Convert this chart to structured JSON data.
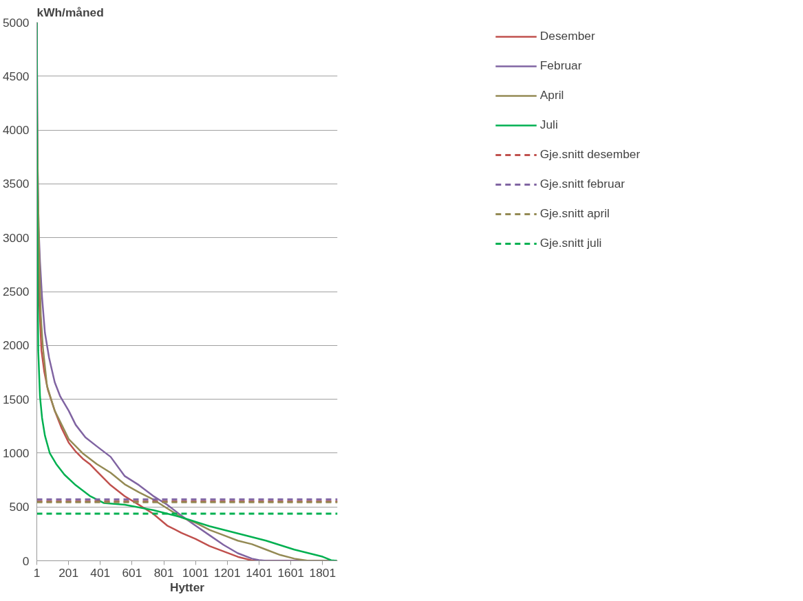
{
  "chart_data": {
    "type": "line",
    "ylabel": "kWh/måned",
    "xlabel": "Hytter",
    "xlim": [
      1,
      1895
    ],
    "xticks": [
      1,
      201,
      401,
      601,
      801,
      1001,
      1201,
      1401,
      1601,
      1801
    ],
    "ylim": [
      0,
      5000
    ],
    "yticks": [
      0,
      500,
      1000,
      1500,
      2000,
      2500,
      3000,
      3500,
      4000,
      4500,
      5000
    ],
    "grid": "y",
    "legend": "right",
    "line_style": "solid",
    "marker": "none",
    "series": [
      {
        "name": "Desember",
        "color": "#c0504d",
        "x": [
          1,
          5,
          17,
          30,
          48,
          70,
          114,
          158,
          202,
          246,
          290,
          334,
          378,
          422,
          466,
          510,
          554,
          644,
          733,
          822,
          911,
          1000,
          1089,
          1178,
          1267,
          1356,
          1400,
          1890
        ],
        "values": [
          5000,
          3500,
          2381,
          1953,
          1756,
          1591,
          1393,
          1229,
          1097,
          1014,
          949,
          899,
          833,
          767,
          702,
          652,
          600,
          520,
          437,
          327,
          260,
          203,
          137,
          87,
          37,
          3,
          0,
          0
        ]
      },
      {
        "name": "Februar",
        "color": "#8064a2",
        "x": [
          1,
          5,
          12,
          21,
          34,
          52,
          78,
          114,
          149,
          202,
          246,
          307,
          378,
          466,
          555,
          644,
          733,
          822,
          911,
          1000,
          1089,
          1178,
          1267,
          1356,
          1400,
          1445,
          1890
        ],
        "values": [
          5000,
          3800,
          3106,
          2777,
          2447,
          2118,
          1887,
          1657,
          1525,
          1393,
          1262,
          1146,
          1064,
          965,
          786,
          703,
          603,
          520,
          420,
          327,
          237,
          147,
          70,
          20,
          7,
          0,
          0
        ]
      },
      {
        "name": "April",
        "color": "#948a54",
        "x": [
          2,
          8,
          17,
          26,
          39,
          65,
          114,
          158,
          202,
          290,
          378,
          466,
          555,
          644,
          733,
          822,
          911,
          1000,
          1089,
          1178,
          1267,
          1356,
          1445,
          1534,
          1623,
          1712,
          1890
        ],
        "values": [
          4200,
          3435,
          2777,
          2283,
          1986,
          1624,
          1393,
          1262,
          1130,
          998,
          899,
          817,
          710,
          636,
          570,
          487,
          404,
          354,
          287,
          237,
          187,
          154,
          104,
          54,
          20,
          0,
          0
        ]
      },
      {
        "name": "Juli",
        "color": "#00b050",
        "x": [
          1,
          3,
          6,
          10,
          21,
          34,
          52,
          83,
          123,
          175,
          246,
          334,
          422,
          555,
          733,
          911,
          1089,
          1267,
          1445,
          1623,
          1801,
          1855,
          1890
        ],
        "values": [
          5000,
          3500,
          2777,
          1953,
          1525,
          1327,
          1163,
          998,
          899,
          800,
          702,
          603,
          537,
          520,
          471,
          404,
          321,
          254,
          187,
          104,
          38,
          5,
          0
        ]
      }
    ],
    "ref_lines": [
      {
        "axis": "y",
        "value": 550,
        "label": "Gje.snitt desember",
        "color": "#c0504d",
        "line_style": "dashed"
      },
      {
        "axis": "y",
        "value": 570,
        "label": "Gje.snitt februar",
        "color": "#8064a2",
        "line_style": "dashed"
      },
      {
        "axis": "y",
        "value": 545,
        "label": "Gje.snitt april",
        "color": "#948a54",
        "line_style": "dashed"
      },
      {
        "axis": "y",
        "value": 438,
        "label": "Gje.snitt juli",
        "color": "#00b050",
        "line_style": "dashed"
      }
    ]
  }
}
